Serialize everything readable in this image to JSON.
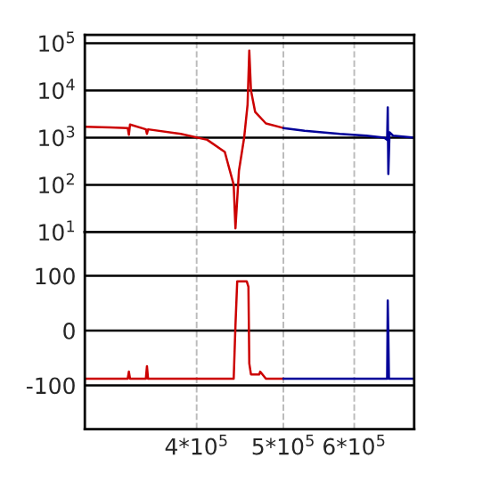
{
  "chart_data": [
    {
      "type": "line",
      "log": "xy",
      "xlim": [
        300000,
        700000
      ],
      "ylim": [
        10,
        150000
      ],
      "grid": true,
      "tick_labels": "y",
      "xticks": [
        {
          "value": 400000,
          "label": null
        },
        {
          "value": 500000,
          "label": null
        },
        {
          "value": 600000,
          "label": null
        }
      ],
      "yticks": [
        {
          "value": 10,
          "label": "10$^{1}$"
        },
        {
          "value": 100,
          "label": "10$^{2}$"
        },
        {
          "value": 1000,
          "label": "10$^{3}$"
        },
        {
          "value": 10000,
          "label": "10$^{4}$"
        },
        {
          "value": 100000,
          "label": "10$^{5}$"
        }
      ],
      "series": [
        {
          "color": "#cc0000",
          "x": [
            300000,
            320000,
            335000,
            336000,
            337000,
            351000,
            352000,
            353000,
            384000,
            411000,
            430000,
            440000,
            442000,
            446000,
            452000,
            456000,
            458000,
            460000,
            465000,
            478000,
            500000
          ],
          "values": [
            1700,
            1650,
            1600,
            1150,
            1900,
            1500,
            1200,
            1500,
            1200,
            900,
            500,
            100,
            12,
            200,
            1000,
            5000,
            70000,
            10000,
            3500,
            2000,
            1600
          ]
        },
        {
          "color": "#000099",
          "x": [
            500000,
            528000,
            578000,
            619000,
            648000,
            653000,
            654000,
            655000,
            657000,
            663000,
            700000
          ],
          "values": [
            1600,
            1400,
            1200,
            1100,
            1000,
            900,
            4400,
            170,
            1300,
            1100,
            1000
          ]
        }
      ]
    },
    {
      "type": "line",
      "log": "x",
      "xlim": [
        300000,
        700000
      ],
      "ylim": [
        -180,
        180
      ],
      "grid": true,
      "xticks": [
        {
          "value": 400000,
          "label": "4*10$^{5}$"
        },
        {
          "value": 500000,
          "label": "5*10$^{5}$"
        },
        {
          "value": 600000,
          "label": "6*10$^{5}$"
        }
      ],
      "yticks": [
        -100,
        0,
        100
      ],
      "series": [
        {
          "color": "#cc0000",
          "x": [
            300000,
            335000,
            336000,
            337000,
            351000,
            352000,
            353000,
            440000,
            442000,
            444000,
            455000,
            457000,
            458000,
            460000,
            470000,
            471000,
            478000,
            500000
          ],
          "values": [
            -88,
            -88,
            -75,
            -88,
            -88,
            -65,
            -88,
            -88,
            10,
            90,
            90,
            80,
            -60,
            -80,
            -80,
            -75,
            -88,
            -88
          ]
        },
        {
          "color": "#000099",
          "x": [
            500000,
            653000,
            654000,
            655000,
            656000,
            700000
          ],
          "values": [
            -88,
            -88,
            55,
            -10,
            -88,
            -88
          ]
        }
      ]
    }
  ]
}
